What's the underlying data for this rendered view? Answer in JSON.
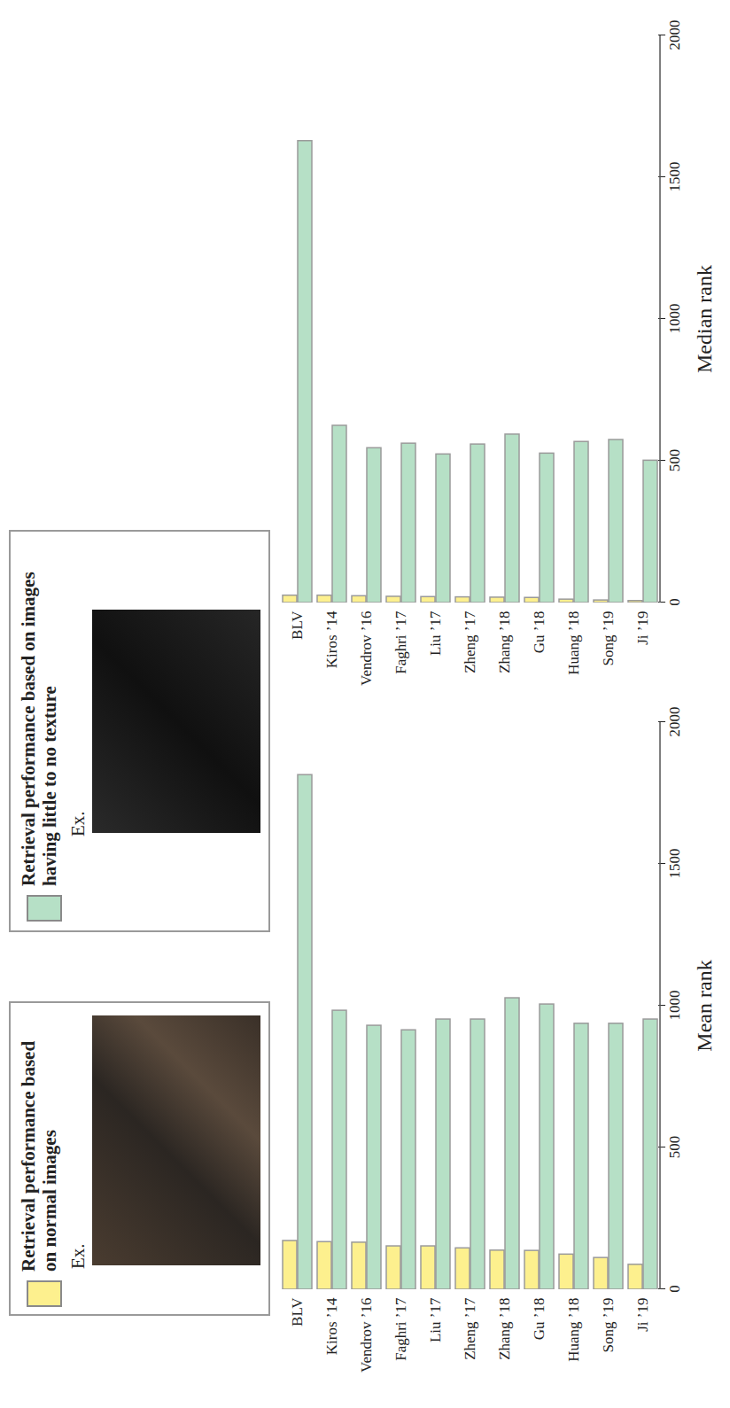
{
  "chart_data": [
    {
      "type": "bar",
      "orientation": "horizontal",
      "legend": "left",
      "annotations": [
        "Ex."
      ],
      "categories": [
        "BLV",
        "Kiros ’14",
        "Vendrov ’16",
        "Faghri ’17",
        "Liu ’17",
        "Zheng ’17",
        "Zhang ’18",
        "Gu ’18",
        "Huang ’18",
        "Song ’19",
        "Ji ’19"
      ],
      "series": [
        {
          "name": "Retrieval performance based on normal images",
          "color": "#fdf08e",
          "values": [
            172,
            168,
            166,
            153,
            153,
            146,
            138,
            137,
            124,
            112,
            88
          ]
        },
        {
          "name": "Retrieval performance based on images having little to no texture",
          "color": "#b6e0c6",
          "values": [
            1815,
            984,
            931,
            915,
            953,
            953,
            1028,
            1006,
            938,
            938,
            953
          ]
        }
      ],
      "xlim": [
        0,
        2000
      ],
      "xticks": [
        0,
        500,
        1000,
        1500,
        2000
      ],
      "xlabel": "Mean rank"
    },
    {
      "type": "bar",
      "orientation": "horizontal",
      "categories": [
        "BLV",
        "Kiros ’14",
        "Vendrov ’16",
        "Faghri ’17",
        "Liu ’17",
        "Zheng ’17",
        "Zhang ’18",
        "Gu ’18",
        "Huang ’18",
        "Song ’19",
        "Ji ’19"
      ],
      "series": [
        {
          "name": "Retrieval performance based on normal images",
          "color": "#fdf08e",
          "values": [
            26,
            26,
            24,
            22,
            21,
            20,
            19,
            18,
            12,
            9,
            7
          ]
        },
        {
          "name": "Retrieval performance based on images having little to no texture",
          "color": "#b6e0c6",
          "values": [
            1629,
            625,
            546,
            562,
            524,
            559,
            594,
            527,
            568,
            575,
            502
          ]
        }
      ],
      "xlim": [
        0,
        2000
      ],
      "xticks": [
        0,
        500,
        1000,
        1500,
        2000
      ],
      "xlabel": "Median rank"
    }
  ]
}
